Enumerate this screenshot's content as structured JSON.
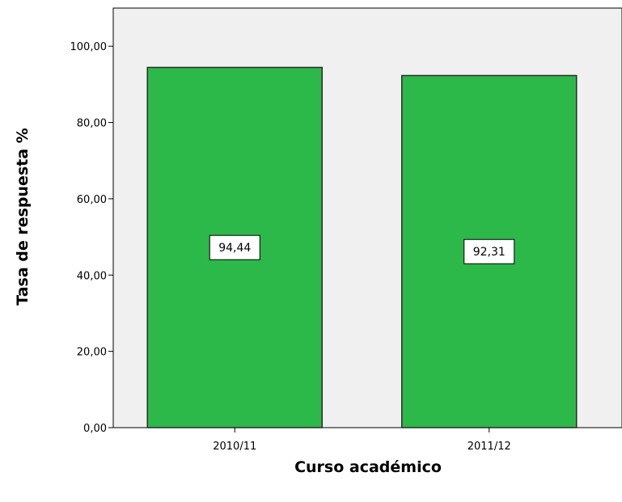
{
  "chart_data": {
    "type": "bar",
    "categories": [
      "2010/11",
      "2011/12"
    ],
    "values": [
      94.44,
      92.31
    ],
    "value_labels": [
      "94,44",
      "92,31"
    ],
    "title": "",
    "xlabel": "Curso académico",
    "ylabel": "Tasa de respuesta %",
    "ylim": [
      0,
      110
    ],
    "yticks": [
      0,
      20,
      40,
      60,
      80,
      100
    ],
    "ytick_labels": [
      "0,00",
      "20,00",
      "40,00",
      "60,00",
      "80,00",
      "100,00"
    ],
    "grid": false,
    "legend": "none",
    "colors": {
      "bar_fill": "#2db84a",
      "bar_stroke": "#2b2b2b",
      "plot_background": "#f0f0f0",
      "axis": "#000000"
    }
  }
}
